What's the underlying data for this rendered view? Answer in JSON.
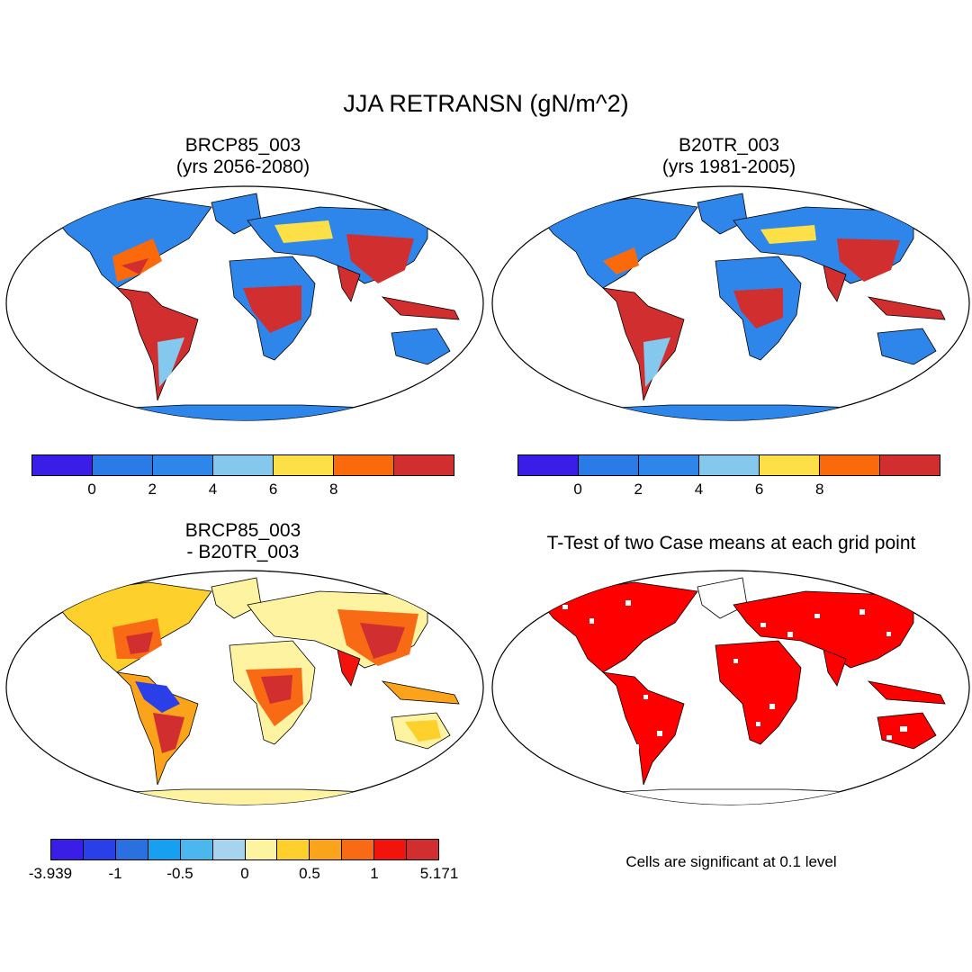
{
  "title": "JJA RETRANSN (gN/m^2)",
  "panels": [
    {
      "id": "brcp85",
      "title_line1": "BRCP85_003",
      "title_line2": "(yrs 2056-2080)"
    },
    {
      "id": "b20tr",
      "title_line1": "B20TR_003",
      "title_line2": "(yrs 1981-2005)"
    },
    {
      "id": "diff",
      "title_line1": "BRCP85_003",
      "title_line2": "- B20TR_003"
    },
    {
      "id": "ttest",
      "title_line1": "T-Test of two Case means at each grid point"
    }
  ],
  "colorbar_abs": {
    "colors": [
      "#3b1de8",
      "#2a7be8",
      "#2f86ea",
      "#85c8ee",
      "#fde047",
      "#fb6a0a",
      "#d12f2f"
    ],
    "ticks": [
      "0",
      "2",
      "4",
      "6",
      "8"
    ]
  },
  "colorbar_diff": {
    "colors": [
      "#3b1de8",
      "#2b3fe8",
      "#2a70e0",
      "#18a0f0",
      "#4ab7ee",
      "#a6d3f0",
      "#fdf3a0",
      "#fdd02b",
      "#fba31a",
      "#f86a14",
      "#f2140c",
      "#d12f2f"
    ],
    "ticks": [
      "-3.939",
      "-1",
      "-0.5",
      "0",
      "0.5",
      "1",
      "5.171"
    ]
  },
  "significance_note": "Cells are significant at 0.1 level",
  "colors": {
    "ocean_bg": "#ffffff",
    "antarctica_abs": "#2f86ea",
    "antarctica_diff": "#fdf3a0",
    "significant": "#ff0000"
  }
}
